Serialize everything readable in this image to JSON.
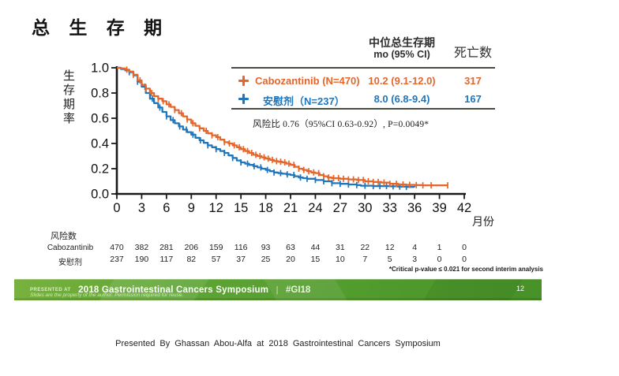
{
  "title": "总 生 存 期",
  "os_table": {
    "header_line1": "中位总生存期",
    "header_line2": "mo (95% CI)",
    "deaths_header": "死亡数",
    "rows": [
      {
        "label": "Cabozantinib (N=470)",
        "median": "10.2 (9.1-12.0)",
        "deaths": "317",
        "color": "#E4662B"
      },
      {
        "label": "安慰剂（N=237）",
        "median": "8.0 (6.8-9.4)",
        "deaths": "167",
        "color": "#1F76BC"
      }
    ]
  },
  "hazard_text": "风险比  0.76（95%CI 0.63-0.92）, P=0.0049*",
  "chart_data": {
    "type": "line",
    "subtype": "kaplan-meier-step",
    "title": "总生存期",
    "xlabel": "月份",
    "ylabel": "生存期率",
    "xlim": [
      0,
      42
    ],
    "ylim": [
      0.0,
      1.0
    ],
    "x_ticks": [
      0,
      3,
      6,
      9,
      12,
      15,
      18,
      21,
      24,
      27,
      30,
      33,
      36,
      39,
      42
    ],
    "y_ticks": [
      0.0,
      0.2,
      0.4,
      0.6,
      0.8,
      1.0
    ],
    "grid": false,
    "legend_position": "top-right",
    "series": [
      {
        "name": "Cabozantinib (N=470)",
        "color": "#E4662B",
        "median_os_mo": "10.2 (9.1-12.0)",
        "deaths": 317,
        "points": [
          [
            0,
            1.0
          ],
          [
            0.5,
            0.995
          ],
          [
            1,
            0.985
          ],
          [
            1.5,
            0.97
          ],
          [
            2,
            0.945
          ],
          [
            2.5,
            0.9
          ],
          [
            3,
            0.865
          ],
          [
            3.5,
            0.835
          ],
          [
            4,
            0.8
          ],
          [
            4.5,
            0.775
          ],
          [
            5,
            0.755
          ],
          [
            5.5,
            0.735
          ],
          [
            6,
            0.71
          ],
          [
            6.5,
            0.69
          ],
          [
            7,
            0.665
          ],
          [
            7.5,
            0.64
          ],
          [
            8,
            0.615
          ],
          [
            8.5,
            0.59
          ],
          [
            9,
            0.56
          ],
          [
            9.5,
            0.54
          ],
          [
            10,
            0.52
          ],
          [
            10.5,
            0.5
          ],
          [
            11,
            0.48
          ],
          [
            11.5,
            0.465
          ],
          [
            12,
            0.45
          ],
          [
            12.5,
            0.43
          ],
          [
            13,
            0.41
          ],
          [
            13.5,
            0.4
          ],
          [
            14,
            0.385
          ],
          [
            14.5,
            0.37
          ],
          [
            15,
            0.355
          ],
          [
            15.5,
            0.34
          ],
          [
            16,
            0.325
          ],
          [
            16.5,
            0.31
          ],
          [
            17,
            0.3
          ],
          [
            17.5,
            0.29
          ],
          [
            18,
            0.28
          ],
          [
            18.5,
            0.27
          ],
          [
            19,
            0.26
          ],
          [
            19.5,
            0.255
          ],
          [
            20,
            0.25
          ],
          [
            20.5,
            0.24
          ],
          [
            21,
            0.23
          ],
          [
            21.5,
            0.215
          ],
          [
            22,
            0.2
          ],
          [
            22.5,
            0.19
          ],
          [
            23,
            0.18
          ],
          [
            23.5,
            0.17
          ],
          [
            24,
            0.165
          ],
          [
            24.5,
            0.15
          ],
          [
            25,
            0.14
          ],
          [
            25.5,
            0.13
          ],
          [
            26,
            0.125
          ],
          [
            27,
            0.12
          ],
          [
            28,
            0.115
          ],
          [
            29,
            0.11
          ],
          [
            30,
            0.1
          ],
          [
            31,
            0.095
          ],
          [
            32,
            0.09
          ],
          [
            33,
            0.08
          ],
          [
            34,
            0.075
          ],
          [
            35,
            0.072
          ],
          [
            36,
            0.07
          ],
          [
            37,
            0.068
          ],
          [
            38,
            0.068
          ],
          [
            40,
            0.068
          ]
        ],
        "censor_months": [
          1.2,
          2.0,
          2.8,
          3.5,
          4.2,
          5.0,
          5.6,
          6.3,
          7.0,
          7.8,
          8.5,
          9.2,
          10.0,
          10.8,
          11.5,
          12.2,
          13.0,
          13.6,
          14.2,
          14.8,
          15.3,
          15.8,
          16.3,
          16.8,
          17.3,
          17.8,
          18.3,
          18.8,
          19.3,
          19.8,
          20.3,
          20.8,
          21.4,
          22.0,
          22.6,
          23.2,
          23.8,
          24.4,
          25.0,
          25.6,
          26.2,
          26.8,
          27.4,
          28.0,
          28.6,
          29.2,
          29.8,
          30.4,
          31.0,
          31.6,
          32.3,
          33.0,
          33.8,
          34.6,
          35.4,
          36.2,
          37.0,
          38.0,
          40.0
        ]
      },
      {
        "name": "安慰剂（N=237）",
        "color": "#1F76BC",
        "median_os_mo": "8.0 (6.8-9.4)",
        "deaths": 167,
        "points": [
          [
            0,
            1.0
          ],
          [
            0.5,
            0.99
          ],
          [
            1,
            0.98
          ],
          [
            1.5,
            0.965
          ],
          [
            2,
            0.94
          ],
          [
            2.5,
            0.89
          ],
          [
            3,
            0.85
          ],
          [
            3.5,
            0.8
          ],
          [
            4,
            0.755
          ],
          [
            4.5,
            0.72
          ],
          [
            5,
            0.685
          ],
          [
            5.5,
            0.65
          ],
          [
            6,
            0.615
          ],
          [
            6.5,
            0.585
          ],
          [
            7,
            0.56
          ],
          [
            7.5,
            0.535
          ],
          [
            8,
            0.51
          ],
          [
            8.5,
            0.49
          ],
          [
            9,
            0.47
          ],
          [
            9.5,
            0.445
          ],
          [
            10,
            0.425
          ],
          [
            10.5,
            0.405
          ],
          [
            11,
            0.385
          ],
          [
            11.5,
            0.37
          ],
          [
            12,
            0.355
          ],
          [
            12.5,
            0.34
          ],
          [
            13,
            0.325
          ],
          [
            13.5,
            0.305
          ],
          [
            14,
            0.285
          ],
          [
            14.5,
            0.265
          ],
          [
            15,
            0.25
          ],
          [
            15.5,
            0.24
          ],
          [
            16,
            0.23
          ],
          [
            16.5,
            0.22
          ],
          [
            17,
            0.21
          ],
          [
            17.5,
            0.2
          ],
          [
            18,
            0.19
          ],
          [
            18.5,
            0.18
          ],
          [
            19,
            0.17
          ],
          [
            19.5,
            0.165
          ],
          [
            20,
            0.16
          ],
          [
            20.5,
            0.155
          ],
          [
            21,
            0.15
          ],
          [
            21.5,
            0.14
          ],
          [
            22,
            0.13
          ],
          [
            22.5,
            0.125
          ],
          [
            23,
            0.12
          ],
          [
            24,
            0.11
          ],
          [
            25,
            0.1
          ],
          [
            26,
            0.085
          ],
          [
            27,
            0.08
          ],
          [
            28,
            0.075
          ],
          [
            29,
            0.07
          ],
          [
            29.5,
            0.065
          ],
          [
            30,
            0.065
          ],
          [
            31,
            0.062
          ],
          [
            32,
            0.062
          ],
          [
            33,
            0.06
          ],
          [
            34,
            0.058
          ],
          [
            35,
            0.056
          ],
          [
            36,
            0.055
          ]
        ],
        "censor_months": [
          1.5,
          2.5,
          3.4,
          4.3,
          5.2,
          6.0,
          6.8,
          7.6,
          8.4,
          9.2,
          10.1,
          11.0,
          12.0,
          13.0,
          14.0,
          15.0,
          15.8,
          16.6,
          17.4,
          18.2,
          19.0,
          19.8,
          20.6,
          21.4,
          22.2,
          23.0,
          24.0,
          25.0,
          26.0,
          27.0,
          28.0,
          29.0,
          30.0,
          31.0,
          31.8,
          32.6,
          33.4,
          34.2,
          35.0
        ]
      }
    ]
  },
  "risk_table": {
    "title": "风险数",
    "months": [
      0,
      3,
      6,
      9,
      12,
      15,
      18,
      21,
      24,
      27,
      30,
      33,
      36,
      39,
      42
    ],
    "rows": [
      {
        "label": "Cabozantinib",
        "counts": [
          470,
          382,
          281,
          206,
          159,
          116,
          93,
          63,
          44,
          31,
          22,
          12,
          4,
          1,
          0
        ]
      },
      {
        "label": "安慰剂",
        "counts": [
          237,
          190,
          117,
          82,
          57,
          37,
          25,
          20,
          15,
          10,
          7,
          5,
          3,
          0,
          0
        ]
      }
    ]
  },
  "footnote": "*Critical p-value ≤ 0.021 for second interim analysis",
  "banner": {
    "presented_at": "PRESENTED AT",
    "event": "2018 Gastrointestinal Cancers Symposium",
    "separator": "|",
    "hashtag": "#GI18",
    "subtext": "Slides are the property of the author. Permission required for reuse.",
    "page_number": "12"
  },
  "caption": "Presented By Ghassan Abou-Alfa at 2018 Gastrointestinal Cancers Symposium"
}
